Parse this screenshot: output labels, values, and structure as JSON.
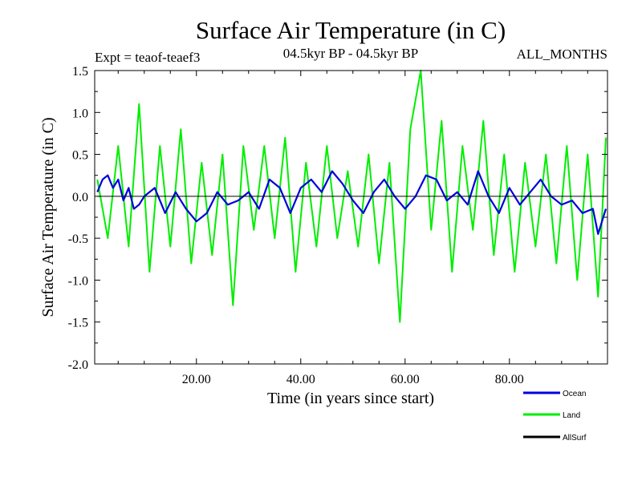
{
  "chart_data": {
    "type": "line",
    "title": "Surface Air Temperature (in C)",
    "subtitle_left": "Expt = teaof-teaef3",
    "subtitle_center": "04.5kyr BP - 04.5kyr BP",
    "subtitle_right": "ALL_MONTHS",
    "xlabel": "Time (in years since start)",
    "ylabel": "Surface Air Temperature (in C)",
    "xlim": [
      0.5,
      98.8
    ],
    "ylim": [
      -2.0,
      1.5
    ],
    "x_ticks": [
      20,
      40,
      60,
      80
    ],
    "x_tick_labels": [
      "20.00",
      "40.00",
      "60.00",
      "80.00"
    ],
    "y_ticks": [
      -2.0,
      -1.5,
      -1.0,
      -0.5,
      0.0,
      0.5,
      1.0,
      1.5
    ],
    "y_tick_labels": [
      "-2.0",
      "-1.5",
      "-1.0",
      "-0.5",
      "0.0",
      "0.5",
      "1.0",
      "1.5"
    ],
    "zero_line": true,
    "series": [
      {
        "name": "Land",
        "color": "#00ee00",
        "x": [
          1,
          3,
          5,
          7,
          9,
          11,
          13,
          15,
          17,
          19,
          21,
          23,
          25,
          27,
          29,
          31,
          33,
          35,
          37,
          39,
          41,
          43,
          45,
          47,
          49,
          51,
          53,
          55,
          57,
          59,
          61,
          63,
          65,
          67,
          69,
          71,
          73,
          75,
          77,
          79,
          81,
          83,
          85,
          87,
          89,
          91,
          93,
          95,
          97,
          98.5
        ],
        "values": [
          0.2,
          -0.5,
          0.6,
          -0.6,
          1.1,
          -0.9,
          0.6,
          -0.6,
          0.8,
          -0.8,
          0.4,
          -0.7,
          0.5,
          -1.3,
          0.6,
          -0.4,
          0.6,
          -0.5,
          0.7,
          -0.9,
          0.4,
          -0.6,
          0.6,
          -0.5,
          0.3,
          -0.6,
          0.5,
          -0.8,
          0.4,
          -1.5,
          0.8,
          1.5,
          -0.4,
          0.9,
          -0.9,
          0.6,
          -0.4,
          0.9,
          -0.7,
          0.5,
          -0.9,
          0.4,
          -0.6,
          0.5,
          -0.8,
          0.6,
          -1.0,
          0.5,
          -1.2,
          0.7
        ]
      },
      {
        "name": "Ocean",
        "color": "#0000dd",
        "x": [
          1,
          2,
          3,
          4,
          5,
          6,
          7,
          8,
          9,
          10,
          12,
          14,
          16,
          18,
          20,
          22,
          24,
          26,
          28,
          30,
          32,
          34,
          36,
          38,
          40,
          42,
          44,
          46,
          48,
          50,
          52,
          54,
          56,
          58,
          60,
          62,
          64,
          66,
          68,
          70,
          72,
          74,
          76,
          78,
          80,
          82,
          84,
          86,
          88,
          90,
          92,
          94,
          96,
          97,
          98.5
        ],
        "values": [
          0.05,
          0.2,
          0.25,
          0.1,
          0.2,
          -0.05,
          0.1,
          -0.15,
          -0.1,
          0.0,
          0.1,
          -0.2,
          0.05,
          -0.15,
          -0.3,
          -0.2,
          0.05,
          -0.1,
          -0.05,
          0.05,
          -0.15,
          0.2,
          0.1,
          -0.2,
          0.1,
          0.2,
          0.05,
          0.3,
          0.15,
          -0.05,
          -0.2,
          0.05,
          0.2,
          0.0,
          -0.15,
          0.0,
          0.25,
          0.2,
          -0.05,
          0.05,
          -0.1,
          0.3,
          0.0,
          -0.2,
          0.1,
          -0.1,
          0.05,
          0.2,
          0.0,
          -0.1,
          -0.05,
          -0.2,
          -0.15,
          -0.45,
          -0.15
        ]
      },
      {
        "name": "AllSurf",
        "color": "#000000",
        "x": [
          1,
          20,
          40,
          60,
          80,
          98.5
        ],
        "values": [
          0,
          0,
          0,
          0,
          0,
          0
        ]
      }
    ],
    "legend": [
      "Ocean",
      "Land",
      "AllSurf"
    ],
    "legend_position": "bottom-right"
  }
}
